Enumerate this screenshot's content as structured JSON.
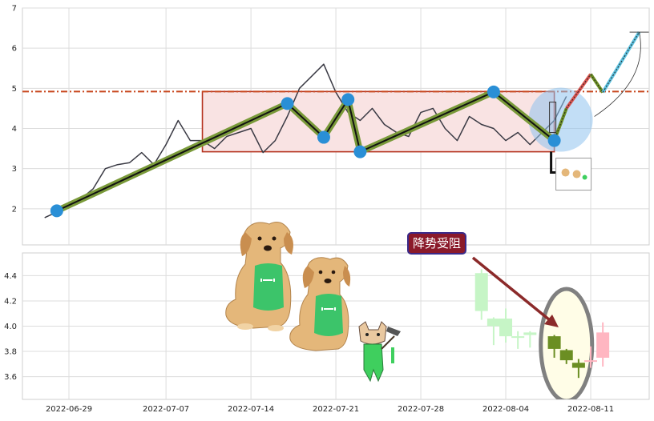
{
  "chart_data": [
    {
      "type": "line",
      "panel": "top",
      "ylim": [
        1.1,
        7.0
      ],
      "yticks": [
        "2",
        "3",
        "4",
        "5",
        "6",
        "7"
      ],
      "grid": true,
      "price_line": {
        "x": [
          "2022-06-27",
          "2022-06-28",
          "2022-06-29",
          "2022-06-30",
          "2022-07-01",
          "2022-07-02",
          "2022-07-03",
          "2022-07-04",
          "2022-07-05",
          "2022-07-06",
          "2022-07-07",
          "2022-07-08",
          "2022-07-09",
          "2022-07-10",
          "2022-07-11",
          "2022-07-12",
          "2022-07-13",
          "2022-07-14",
          "2022-07-15",
          "2022-07-16",
          "2022-07-17",
          "2022-07-18",
          "2022-07-19",
          "2022-07-20",
          "2022-07-21",
          "2022-07-22",
          "2022-07-23",
          "2022-07-24",
          "2022-07-25",
          "2022-07-26",
          "2022-07-27",
          "2022-07-28",
          "2022-07-29",
          "2022-07-30",
          "2022-07-31",
          "2022-08-01",
          "2022-08-02",
          "2022-08-03",
          "2022-08-04",
          "2022-08-05",
          "2022-08-06",
          "2022-08-07",
          "2022-08-08",
          "2022-08-09"
        ],
        "y": [
          1.78,
          1.92,
          2.05,
          2.25,
          2.5,
          3.0,
          3.1,
          3.15,
          3.4,
          3.1,
          3.6,
          4.2,
          3.7,
          3.7,
          3.5,
          3.8,
          3.9,
          4.0,
          3.4,
          3.7,
          4.3,
          5.0,
          5.3,
          5.6,
          4.9,
          4.4,
          4.2,
          4.5,
          4.1,
          3.9,
          3.8,
          4.4,
          4.5,
          4.0,
          3.7,
          4.3,
          4.1,
          4.0,
          3.7,
          3.9,
          3.6,
          3.9,
          4.2,
          4.8
        ]
      },
      "horizontal_line": {
        "value": 4.92
      },
      "range_box": {
        "x": [
          "2022-07-10",
          "2022-08-08"
        ],
        "y": [
          3.42,
          4.92
        ]
      },
      "zigzag": {
        "x": [
          "2022-06-28",
          "2022-07-17",
          "2022-07-20",
          "2022-07-22",
          "2022-07-23",
          "2022-08-03",
          "2022-08-08"
        ],
        "y": [
          1.95,
          4.62,
          3.78,
          4.72,
          3.42,
          4.91,
          3.7
        ]
      },
      "projection": {
        "x": [
          "2022-08-08",
          "2022-08-09",
          "2022-08-11",
          "2022-08-12",
          "2022-08-15"
        ],
        "y": [
          3.7,
          4.5,
          5.35,
          4.9,
          6.4
        ]
      }
    },
    {
      "type": "candlestick",
      "panel": "bottom",
      "ylim": [
        3.42,
        4.58
      ],
      "yticks": [
        "3.6",
        "3.8",
        "4.0",
        "4.2",
        "4.4"
      ],
      "xticks": [
        "2022-06-29",
        "2022-07-07",
        "2022-07-14",
        "2022-07-21",
        "2022-07-28",
        "2022-08-04",
        "2022-08-11"
      ],
      "candles": [
        {
          "date": "2022-08-02",
          "open": 4.12,
          "close": 4.42,
          "low": 4.05,
          "high": 4.45
        },
        {
          "date": "2022-08-03",
          "open": 4.0,
          "close": 4.06,
          "low": 3.85,
          "high": 4.07
        },
        {
          "date": "2022-08-04",
          "open": 3.92,
          "close": 4.06,
          "low": 3.87,
          "high": 4.14
        },
        {
          "date": "2022-08-05",
          "open": 3.91,
          "close": 3.92,
          "low": 3.82,
          "high": 3.96
        },
        {
          "date": "2022-08-06",
          "open": 3.93,
          "close": 3.95,
          "low": 3.83,
          "high": 3.96
        },
        {
          "date": "2022-08-08",
          "open": 3.92,
          "close": 3.82,
          "low": 3.75,
          "high": 3.93
        },
        {
          "date": "2022-08-09",
          "open": 3.81,
          "close": 3.73,
          "low": 3.7,
          "high": 3.82
        },
        {
          "date": "2022-08-10",
          "open": 3.71,
          "close": 3.67,
          "low": 3.59,
          "high": 3.74
        },
        {
          "date": "2022-08-11",
          "open": 3.72,
          "close": 3.73,
          "low": 3.67,
          "high": 3.84
        },
        {
          "date": "2022-08-12",
          "open": 3.75,
          "close": 3.95,
          "low": 3.68,
          "high": 4.03
        }
      ]
    }
  ],
  "annotation": {
    "label": "降势受阻",
    "colors": {
      "label_bg": "#8b1a2a",
      "label_border": "#3a2a8a",
      "arrow": "#8b2a2a"
    }
  },
  "colors": {
    "price_line": "#3a3a44",
    "zigzag_outer": "#7a9a3a",
    "zigzag_inner": "#111111",
    "pivot": "#2a8fd6",
    "range_box_fill": "#f9e3e3",
    "range_box_stroke": "#b5331f",
    "horizontal_line": "#c8471e",
    "candle_up": "#ffb6c1",
    "candle_down": "#6b8e23",
    "candle_up_faded": "#c6f5c6",
    "highlight_fill": "#fffde7",
    "highlight_stroke": "#808080"
  },
  "icons": [
    "golden-retriever-dog-icon",
    "golden-retriever-dog-icon",
    "cartoon-cat-with-hammer-icon"
  ]
}
